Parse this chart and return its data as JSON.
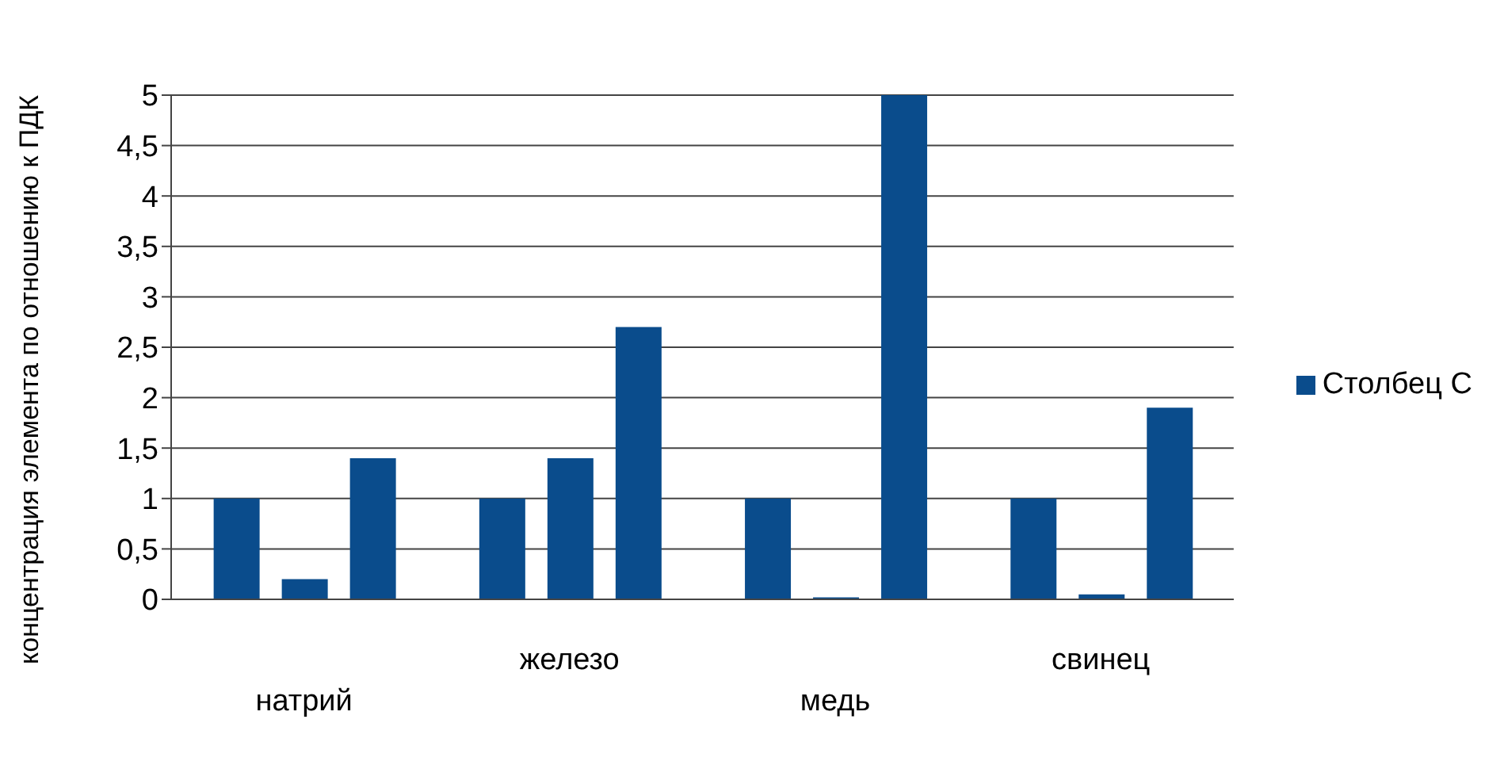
{
  "chart_data": {
    "type": "bar",
    "ylabel": "концентрация элемента по отношению к ПДК",
    "categories": [
      "натрий",
      "железо",
      "медь",
      "свинец"
    ],
    "series": [
      {
        "color": "#0a4c8c",
        "values": [
          1,
          1,
          1,
          1
        ]
      },
      {
        "color": "#0a4c8c",
        "values": [
          0.2,
          1.4,
          0.02,
          0.05
        ]
      },
      {
        "name": "Столбец C",
        "color": "#0a4c8c",
        "values": [
          1.4,
          2.7,
          5,
          1.9
        ]
      }
    ],
    "ylim": [
      0,
      5
    ],
    "yticks": [
      0,
      {
        "value": 0.5,
        "label": "0,5"
      },
      1,
      {
        "value": 1.5,
        "label": "1,5"
      },
      2,
      {
        "value": 2.5,
        "label": "2,5"
      },
      3,
      {
        "value": 3.5,
        "label": "3,5"
      },
      4,
      {
        "value": 4.5,
        "label": "4,5"
      },
      5
    ],
    "grid": "y",
    "legend": "right"
  }
}
